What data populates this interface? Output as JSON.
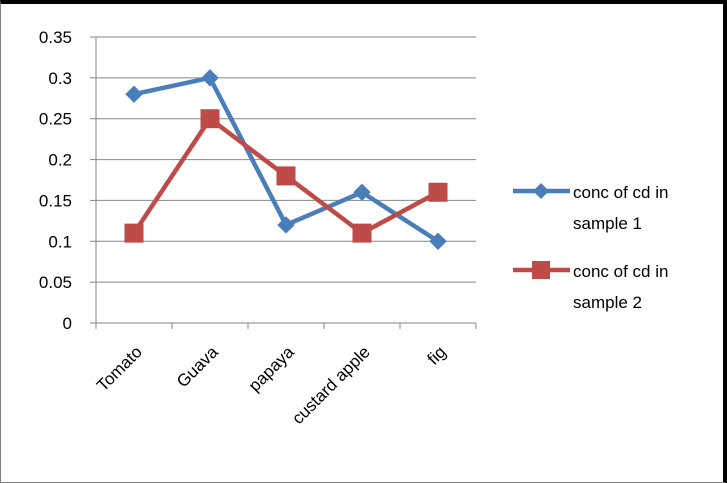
{
  "chart_data": {
    "type": "line",
    "categories": [
      "Tomato",
      "Guava",
      "papaya",
      "custard apple",
      "fig"
    ],
    "ylim": [
      0,
      0.35
    ],
    "y_ticks": [
      "0",
      "0.05",
      "0.1",
      "0.15",
      "0.2",
      "0.25",
      "0.3",
      "0.35"
    ],
    "grid": true,
    "legend_position": "right",
    "series": [
      {
        "name": "conc of cd in sample 1",
        "name_lines": [
          "conc of cd in",
          "sample 1"
        ],
        "values": [
          0.28,
          0.3,
          0.12,
          0.16,
          0.1
        ],
        "color": "#4a7ebb",
        "marker": "diamond"
      },
      {
        "name": "conc of cd in sample 2",
        "name_lines": [
          "conc of cd in",
          "sample 2"
        ],
        "values": [
          0.11,
          0.25,
          0.18,
          0.11,
          0.16
        ],
        "color": "#be4b48",
        "marker": "square"
      }
    ]
  }
}
